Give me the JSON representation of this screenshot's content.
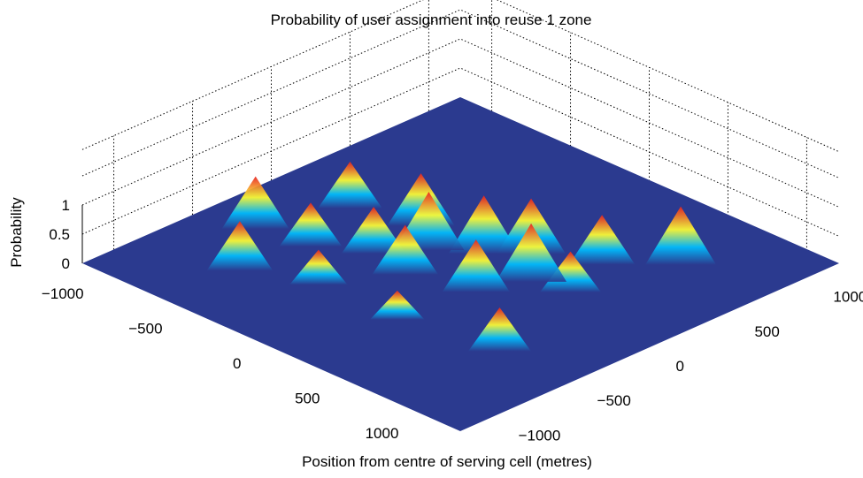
{
  "chart_data": {
    "type": "surface",
    "title": "Probability of user assignment into reuse 1 zone",
    "xlabel": "Position from centre of serving cell (metres)",
    "ylabel": "",
    "zlabel": "Probability",
    "x_ticks": [
      "−1000",
      "−500",
      "0",
      "500",
      "1000"
    ],
    "y_ticks": [
      "−1000",
      "−500",
      "0",
      "500",
      "1000"
    ],
    "z_ticks": [
      "0",
      "0.5",
      "1"
    ],
    "xlim": [
      -1200,
      1200
    ],
    "ylim": [
      -1200,
      1200
    ],
    "zlim": [
      0,
      1
    ],
    "grid": true,
    "colormap": "jet",
    "colors": {
      "floor": "#2b3a8f",
      "low": "#00bfff",
      "mid": "#ffff33",
      "high": "#e82020"
    },
    "peaks": [
      {
        "x": -200,
        "y": 0,
        "z": 1.0
      },
      {
        "x": 0,
        "y": 150,
        "z": 1.0
      },
      {
        "x": 150,
        "y": 300,
        "z": 0.95
      },
      {
        "x": 350,
        "y": 100,
        "z": 1.0
      },
      {
        "x": 250,
        "y": -150,
        "z": 0.9
      },
      {
        "x": -100,
        "y": -250,
        "z": 0.85
      },
      {
        "x": -400,
        "y": 150,
        "z": 0.9
      },
      {
        "x": -350,
        "y": -200,
        "z": 0.8
      },
      {
        "x": 450,
        "y": 450,
        "z": 0.85
      },
      {
        "x": 550,
        "y": 150,
        "z": 0.7
      },
      {
        "x": -600,
        "y": -350,
        "z": 0.75
      },
      {
        "x": -750,
        "y": 50,
        "z": 0.8
      },
      {
        "x": 700,
        "y": 700,
        "z": 1.0
      },
      {
        "x": 750,
        "y": -500,
        "z": 0.75
      },
      {
        "x": -300,
        "y": -600,
        "z": 0.6
      },
      {
        "x": -650,
        "y": -750,
        "z": 0.85
      },
      {
        "x": -900,
        "y": -400,
        "z": 0.9
      },
      {
        "x": 200,
        "y": -600,
        "z": 0.5
      }
    ]
  }
}
